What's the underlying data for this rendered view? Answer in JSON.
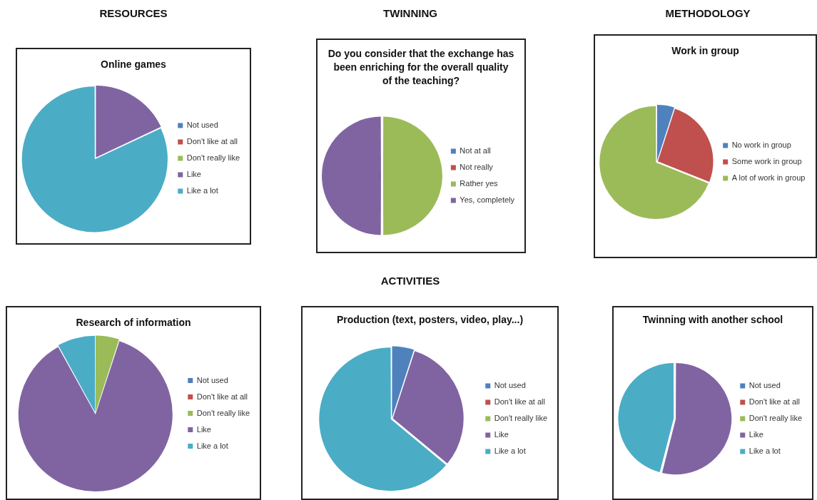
{
  "chart_data": [
    {
      "type": "pie",
      "title": "Online games",
      "annotations": [
        "RESOURCES"
      ],
      "categories": [
        "Not used",
        "Don't like at all",
        "Don't really like",
        "Like",
        "Like a lot"
      ],
      "values": [
        0,
        0,
        0,
        18,
        82
      ],
      "colors": [
        "#4f81bd",
        "#c0504d",
        "#9bbb59",
        "#8064a2",
        "#4bacc6"
      ],
      "legend": "right"
    },
    {
      "type": "pie",
      "title": "Do you consider that the exchange has been enriching for the overall quality of the teaching?",
      "annotations": [
        "TWINNING"
      ],
      "categories": [
        "Not at all",
        "Not really",
        "Rather yes",
        "Yes, completely"
      ],
      "values": [
        0,
        0,
        50,
        50
      ],
      "colors": [
        "#4f81bd",
        "#c0504d",
        "#9bbb59",
        "#8064a2"
      ],
      "legend": "right"
    },
    {
      "type": "pie",
      "title": "Work in group",
      "annotations": [
        "METHODOLOGY"
      ],
      "categories": [
        "No work in group",
        "Some work in group",
        "A lot of work in group"
      ],
      "values": [
        5,
        26,
        69
      ],
      "colors": [
        "#4f81bd",
        "#c0504d",
        "#9bbb59"
      ],
      "legend": "right"
    },
    {
      "type": "pie",
      "title": "Research of information",
      "categories": [
        "Not used",
        "Don't like at all",
        "Don't really like",
        "Like",
        "Like a lot"
      ],
      "values": [
        0,
        0,
        5,
        87,
        8
      ],
      "colors": [
        "#4f81bd",
        "#c0504d",
        "#9bbb59",
        "#8064a2",
        "#4bacc6"
      ],
      "legend": "right"
    },
    {
      "type": "pie",
      "title": "Production (text, posters, video, play...)",
      "annotations": [
        "ACTIVITIES"
      ],
      "categories": [
        "Not used",
        "Don't like at all",
        "Don't really like",
        "Like",
        "Like a lot"
      ],
      "values": [
        5,
        0,
        0,
        31,
        64
      ],
      "colors": [
        "#4f81bd",
        "#c0504d",
        "#9bbb59",
        "#8064a2",
        "#4bacc6"
      ],
      "legend": "right"
    },
    {
      "type": "pie",
      "title": "Twinning with another school",
      "categories": [
        "Not used",
        "Don't like at all",
        "Don't really like",
        "Like",
        "Like a lot"
      ],
      "values": [
        0,
        0,
        0,
        54,
        46
      ],
      "colors": [
        "#4f81bd",
        "#c0504d",
        "#9bbb59",
        "#8064a2",
        "#4bacc6"
      ],
      "legend": "right"
    }
  ]
}
